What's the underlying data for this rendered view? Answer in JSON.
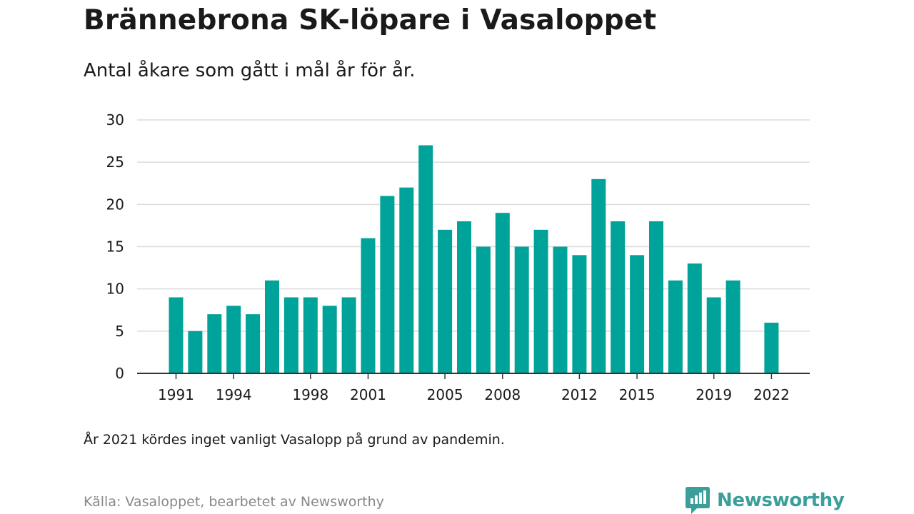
{
  "header": {
    "title": "Brännebrona SK-löpare i Vasaloppet",
    "subtitle": "Antal åkare som gått i mål år för år."
  },
  "footer": {
    "note": "År 2021 kördes inget vanligt Vasalopp på grund av pandemin.",
    "source": "Källa: Vasaloppet, bearbetet av Newsworthy",
    "brand": "Newsworthy"
  },
  "colors": {
    "bar": "#00a399",
    "grid": "#dcdcdc",
    "axis": "#333333",
    "text": "#1a1a1a",
    "muted": "#888888",
    "brand": "#3a9f9a"
  },
  "icons": {
    "logo": "newsworthy-chat-bars-icon"
  },
  "chart_data": {
    "type": "bar",
    "title": "",
    "xlabel": "",
    "ylabel": "",
    "ylim": [
      0,
      30
    ],
    "yticks": [
      0,
      5,
      10,
      15,
      20,
      25,
      30
    ],
    "xtick_labels": [
      "1991",
      "1994",
      "1998",
      "2001",
      "2005",
      "2008",
      "2012",
      "2015",
      "2019",
      "2022"
    ],
    "grid": true,
    "legend": "none",
    "categories": [
      1991,
      1992,
      1993,
      1994,
      1995,
      1996,
      1997,
      1998,
      1999,
      2000,
      2001,
      2002,
      2003,
      2004,
      2005,
      2006,
      2007,
      2008,
      2009,
      2010,
      2011,
      2012,
      2013,
      2014,
      2015,
      2016,
      2017,
      2018,
      2019,
      2020,
      2021,
      2022
    ],
    "values": [
      9,
      5,
      7,
      8,
      7,
      11,
      9,
      9,
      8,
      9,
      16,
      21,
      22,
      27,
      17,
      18,
      15,
      19,
      15,
      17,
      15,
      14,
      23,
      18,
      14,
      18,
      11,
      13,
      9,
      11,
      null,
      6
    ]
  }
}
